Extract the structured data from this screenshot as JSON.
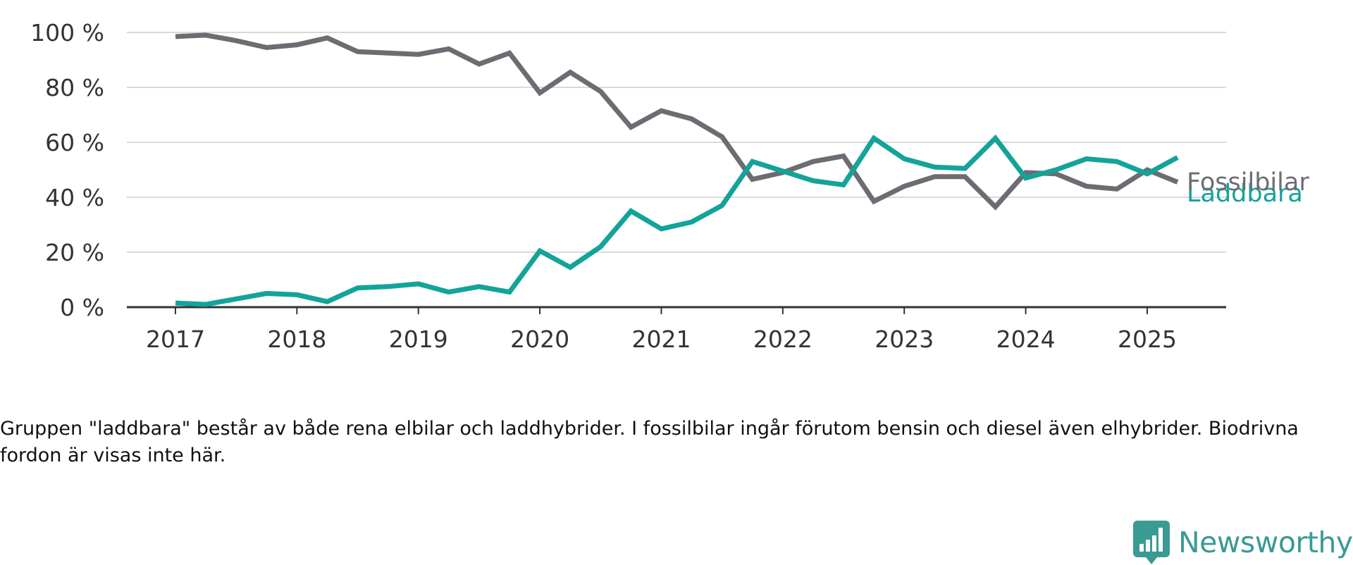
{
  "chart_data": {
    "type": "line",
    "title": "",
    "xlabel": "",
    "ylabel": "",
    "y_unit_suffix": " %",
    "ylim": [
      0,
      100
    ],
    "y_ticks": [
      0,
      20,
      40,
      60,
      80,
      100
    ],
    "y_tick_labels": [
      "0 %",
      "20 %",
      "40 %",
      "60 %",
      "80 %",
      "100 %"
    ],
    "x_ticks": [
      2017,
      2018,
      2019,
      2020,
      2021,
      2022,
      2023,
      2024,
      2025
    ],
    "x_tick_labels": [
      "2017",
      "2018",
      "2019",
      "2020",
      "2021",
      "2022",
      "2023",
      "2024",
      "2025"
    ],
    "xlim": [
      2016.6,
      2025.65
    ],
    "grid": "horizontal",
    "x": [
      2017.0,
      2017.25,
      2017.5,
      2017.75,
      2018.0,
      2018.25,
      2018.5,
      2018.75,
      2019.0,
      2019.25,
      2019.5,
      2019.75,
      2020.0,
      2020.25,
      2020.5,
      2020.75,
      2021.0,
      2021.25,
      2021.5,
      2021.75,
      2022.0,
      2022.25,
      2022.5,
      2022.75,
      2023.0,
      2023.25,
      2023.5,
      2023.75,
      2024.0,
      2024.25,
      2024.5,
      2024.75,
      2025.0,
      2025.25
    ],
    "series": [
      {
        "name": "Fossilbilar",
        "color": "#6d6c72",
        "values": [
          98.5,
          99,
          97,
          94.5,
          95.5,
          98,
          93,
          92.5,
          92,
          94,
          88.5,
          92.5,
          78,
          85.5,
          78.5,
          65.5,
          71.5,
          68.5,
          62,
          46.5,
          49,
          53,
          55,
          38.5,
          44,
          47.5,
          47.5,
          36.5,
          49,
          48.5,
          44,
          43,
          50,
          45.5
        ]
      },
      {
        "name": "Laddbara",
        "color": "#13a39a",
        "values": [
          1.5,
          1,
          3,
          5,
          4.5,
          2,
          7,
          7.5,
          8.5,
          5.5,
          7.5,
          5.5,
          20.5,
          14.5,
          22,
          35,
          28.5,
          31,
          37,
          53,
          49.5,
          46,
          44.5,
          61.5,
          54,
          51,
          50.5,
          61.5,
          47,
          50,
          54,
          53,
          48.5,
          54.5
        ]
      }
    ]
  },
  "caption": "Gruppen \"laddbara\" består av både rena elbilar och laddhybrider. I fossilbilar ingår förutom bensin och diesel även elhybrider. Biodrivna fordon är visas inte här.",
  "brand": {
    "name": "Newsworthy",
    "color": "#3a9a94",
    "logo_icon": "bar-chart-speech-bubble-icon"
  }
}
